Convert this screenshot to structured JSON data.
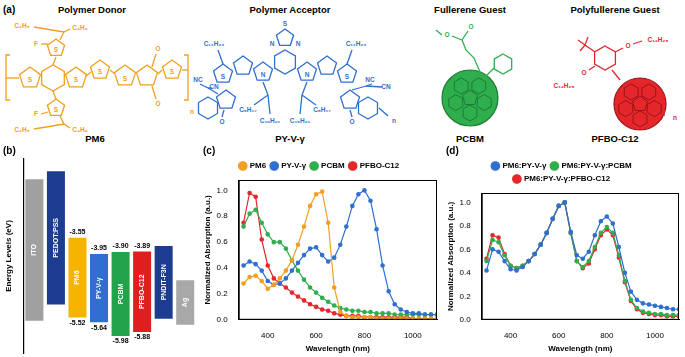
{
  "panel_a": {
    "label": "(a)",
    "molecules": [
      {
        "role": "Polymer Donor",
        "name": "PM6",
        "color": "#f0a020",
        "atoms": [
          "C₂H₅",
          "C₄H₉",
          "F",
          "S",
          "S",
          "S",
          "S",
          "F",
          "C₄H₉",
          "C₂H₅",
          "S",
          "O",
          "O",
          "S",
          "S",
          "n"
        ]
      },
      {
        "role": "Polymer Acceptor",
        "name": "PY-V-γ",
        "color": "#2f6fd0",
        "atoms": [
          "C₁₁H₂₃",
          "C₁₁H₂₃",
          "S",
          "N",
          "N",
          "S",
          "S",
          "N",
          "N",
          "C₈H₁₇",
          "C₁₀H₂₁",
          "C₈H₁₇",
          "C₁₀H₂₁",
          "O",
          "NC",
          "CN",
          "O",
          "NC",
          "CN",
          "n"
        ]
      },
      {
        "role": "Fullerene Guest",
        "name": "PCBM",
        "color": "#2fae4e",
        "atoms": [
          "O",
          "O"
        ]
      },
      {
        "role": "Polyfullerene Guest",
        "name": "PFBO-C12",
        "color": "#e5262b",
        "atoms": [
          "O",
          "C₁₂H₂₅",
          "O",
          "C₁₂H₂₅",
          "n"
        ]
      }
    ]
  },
  "chart_data": [
    {
      "type": "bar",
      "title": "(b)",
      "ylabel": "Energy Levels (eV)",
      "categories": [
        "ITO",
        "PEDOT:PSS",
        "PM6",
        "PY-V-γ",
        "PCBM",
        "PFBO-C12",
        "PNDIT-F3N",
        "Ag"
      ],
      "colors": [
        "#a0a0a0",
        "#1c3d8f",
        "#f5b400",
        "#2f6fd0",
        "#22a34a",
        "#e01e1e",
        "#1c3d8f",
        "#a8a8a8"
      ],
      "ylim": [
        -6.4,
        -1.6
      ],
      "tick_labels": false,
      "grid": false,
      "series": [
        {
          "upper": [
            -2.1,
            -1.9,
            null,
            null,
            null,
            null,
            -3.75,
            -4.6
          ],
          "lower": [
            -5.6,
            -5.2,
            null,
            null,
            null,
            null,
            -5.55,
            -5.7
          ],
          "data_labels": false
        },
        {
          "upper": [
            null,
            null,
            -3.55,
            -3.95,
            -3.9,
            -3.89,
            null,
            null
          ],
          "lower": [
            null,
            null,
            -5.52,
            -5.64,
            -5.98,
            -5.88,
            null,
            null
          ],
          "upper_labels": [
            null,
            null,
            "-3.55",
            "-3.95",
            "-3.90",
            "-3.89",
            null,
            null
          ],
          "lower_labels": [
            null,
            null,
            "-5.52",
            "-5.64",
            "-5.98",
            "-5.88",
            null,
            null
          ],
          "data_labels": true
        }
      ]
    },
    {
      "type": "line",
      "title": "(c)",
      "xlabel": "Wavelength (nm)",
      "ylabel": "Normalized Absorption (a.u.)",
      "x": [
        300,
        325,
        350,
        375,
        400,
        425,
        450,
        475,
        500,
        525,
        550,
        575,
        600,
        625,
        650,
        675,
        700,
        725,
        750,
        775,
        800,
        825,
        850,
        875,
        900,
        925,
        950,
        975,
        1000,
        1025,
        1050,
        1075,
        1100
      ],
      "xlim": [
        280,
        1100
      ],
      "ylim": [
        0,
        1.08
      ],
      "xticks": [
        400,
        600,
        800,
        1000
      ],
      "yticks": [
        {
          "value": 0,
          "label": "0.0"
        },
        {
          "value": 0.2,
          "label": "0.2"
        },
        {
          "value": 0.4,
          "label": "0.4"
        },
        {
          "value": 0.6,
          "label": "0.6"
        },
        {
          "value": 0.8,
          "label": "0.8"
        },
        {
          "value": 1,
          "label": "1.0"
        }
      ],
      "grid": false,
      "legend": "top",
      "marker": "circle",
      "line_style": "solid",
      "series": [
        {
          "name": "PM6",
          "color": "#f0a020",
          "values": [
            0.28,
            0.33,
            0.34,
            0.3,
            0.24,
            0.27,
            0.32,
            0.38,
            0.46,
            0.58,
            0.72,
            0.88,
            0.97,
            0.99,
            0.75,
            0.25,
            0.06,
            0.03,
            0.02,
            0.02,
            0.02,
            0.02,
            0.01,
            0.01,
            0.01,
            0.01,
            0.01,
            0.01,
            0.01,
            0.01,
            0.01,
            0.01,
            0.01
          ]
        },
        {
          "name": "PY-V-γ",
          "color": "#2f6fd0",
          "values": [
            0.42,
            0.45,
            0.43,
            0.38,
            0.3,
            0.27,
            0.28,
            0.32,
            0.38,
            0.44,
            0.5,
            0.55,
            0.56,
            0.5,
            0.45,
            0.48,
            0.58,
            0.72,
            0.88,
            0.97,
            1.0,
            0.92,
            0.7,
            0.42,
            0.22,
            0.12,
            0.08,
            0.06,
            0.05,
            0.05,
            0.04,
            0.04,
            0.04
          ]
        },
        {
          "name": "PCBM",
          "color": "#2fae4e",
          "values": [
            0.72,
            0.82,
            0.85,
            0.75,
            0.66,
            0.6,
            0.6,
            0.55,
            0.46,
            0.38,
            0.31,
            0.25,
            0.21,
            0.17,
            0.14,
            0.11,
            0.09,
            0.08,
            0.07,
            0.07,
            0.06,
            0.06,
            0.05,
            0.05,
            0.05,
            0.04,
            0.04,
            0.04,
            0.04,
            0.04,
            0.04,
            0.04,
            0.04
          ]
        },
        {
          "name": "PFBO-C12",
          "color": "#e5262b",
          "values": [
            0.75,
            0.98,
            0.95,
            0.62,
            0.42,
            0.32,
            0.28,
            0.25,
            0.21,
            0.18,
            0.15,
            0.12,
            0.1,
            0.08,
            0.07,
            0.05,
            0.04,
            0.03,
            0.03,
            0.03,
            0.02,
            0.02,
            0.02,
            0.02,
            0.02,
            0.02,
            0.02,
            0.02,
            0.01,
            0.01,
            0.01,
            0.01,
            0.01
          ]
        }
      ]
    },
    {
      "type": "line",
      "title": "(d)",
      "xlabel": "Wavelength (nm)",
      "ylabel": "Normalized Absorption (a.u.)",
      "x": [
        300,
        325,
        350,
        375,
        400,
        425,
        450,
        475,
        500,
        525,
        550,
        575,
        600,
        625,
        650,
        675,
        700,
        725,
        750,
        775,
        800,
        825,
        850,
        875,
        900,
        925,
        950,
        975,
        1000,
        1025,
        1050,
        1075,
        1100
      ],
      "xlim": [
        280,
        1100
      ],
      "ylim": [
        0,
        1.08
      ],
      "xticks": [
        400,
        600,
        800,
        1000
      ],
      "yticks": [
        {
          "value": 0,
          "label": "0.0"
        },
        {
          "value": 0.2,
          "label": "0.2"
        },
        {
          "value": 0.4,
          "label": "0.4"
        },
        {
          "value": 0.6,
          "label": "0.6"
        },
        {
          "value": 0.8,
          "label": "0.8"
        },
        {
          "value": 1,
          "label": "1.0"
        }
      ],
      "grid": false,
      "legend": "top",
      "marker": "circle",
      "line_style": "solid",
      "series": [
        {
          "name": "PM6:PY-V-γ",
          "color": "#2f6fd0",
          "values": [
            0.42,
            0.6,
            0.58,
            0.5,
            0.43,
            0.42,
            0.45,
            0.5,
            0.56,
            0.64,
            0.74,
            0.86,
            0.97,
            1.0,
            0.75,
            0.55,
            0.52,
            0.58,
            0.72,
            0.84,
            0.88,
            0.82,
            0.62,
            0.4,
            0.24,
            0.17,
            0.14,
            0.13,
            0.12,
            0.11,
            0.1,
            0.09,
            0.09
          ]
        },
        {
          "name": "PM6:PY-V-γ:PCBM",
          "color": "#2fae4e",
          "values": [
            0.5,
            0.68,
            0.66,
            0.55,
            0.46,
            0.44,
            0.46,
            0.5,
            0.56,
            0.64,
            0.74,
            0.86,
            0.97,
            1.0,
            0.74,
            0.5,
            0.45,
            0.5,
            0.62,
            0.74,
            0.79,
            0.74,
            0.55,
            0.33,
            0.17,
            0.1,
            0.07,
            0.06,
            0.05,
            0.05,
            0.04,
            0.04,
            0.04
          ]
        },
        {
          "name": "PM6:PY-V-γ:PFBO-C12",
          "color": "#e5262b",
          "values": [
            0.52,
            0.72,
            0.7,
            0.56,
            0.46,
            0.44,
            0.46,
            0.5,
            0.56,
            0.64,
            0.74,
            0.86,
            0.97,
            1.0,
            0.74,
            0.5,
            0.44,
            0.48,
            0.6,
            0.72,
            0.77,
            0.72,
            0.53,
            0.32,
            0.16,
            0.09,
            0.06,
            0.05,
            0.04,
            0.04,
            0.03,
            0.03,
            0.03
          ]
        }
      ]
    }
  ]
}
